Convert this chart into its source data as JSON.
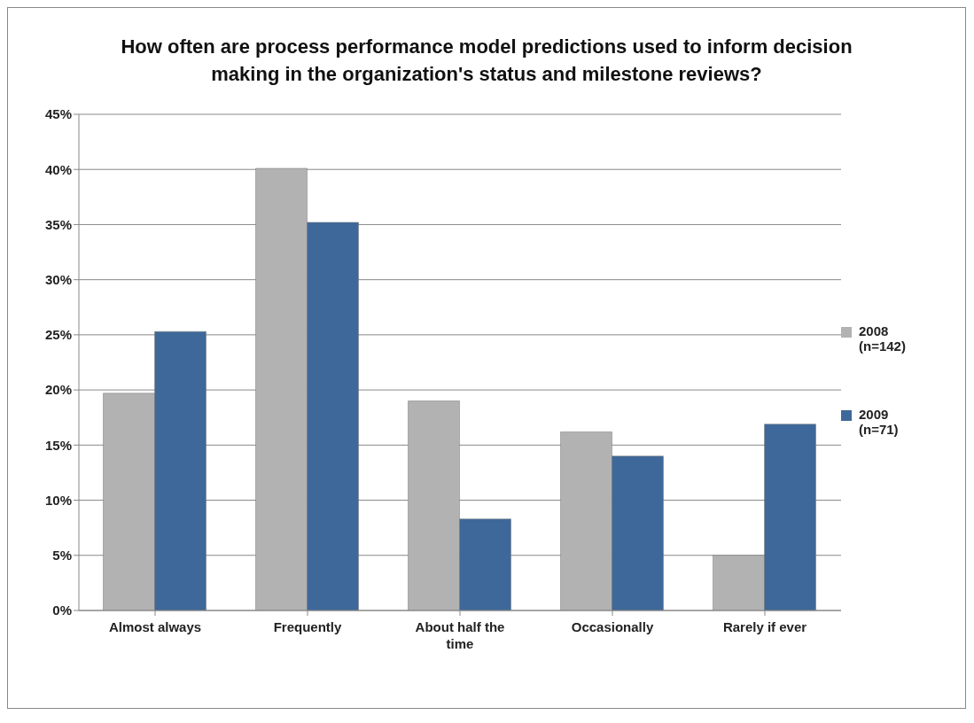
{
  "chart_data": {
    "type": "bar",
    "title": "How often are process performance model predictions used to inform decision making in the organization's status and milestone reviews?",
    "categories": [
      "Almost always",
      "Frequently",
      "About half the time",
      "Occasionally",
      "Rarely if ever"
    ],
    "series": [
      {
        "name": "2008 (n=142)",
        "color": "#b2b2b2",
        "values": [
          19.7,
          40.1,
          19.0,
          16.2,
          5.0
        ]
      },
      {
        "name": "2009 (n=71)",
        "color": "#3e6899",
        "values": [
          25.3,
          35.2,
          8.3,
          14.0,
          16.9
        ]
      }
    ],
    "ylim": [
      0,
      45
    ],
    "yticks": [
      {
        "value": 0,
        "label": "0%"
      },
      {
        "value": 5,
        "label": "5%"
      },
      {
        "value": 10,
        "label": "10%"
      },
      {
        "value": 15,
        "label": "15%"
      },
      {
        "value": 20,
        "label": "20%"
      },
      {
        "value": 25,
        "label": "25%"
      },
      {
        "value": 30,
        "label": "30%"
      },
      {
        "value": 35,
        "label": "35%"
      },
      {
        "value": 40,
        "label": "40%"
      },
      {
        "value": 45,
        "label": "45%"
      }
    ],
    "grid": "y",
    "legend": "right"
  }
}
